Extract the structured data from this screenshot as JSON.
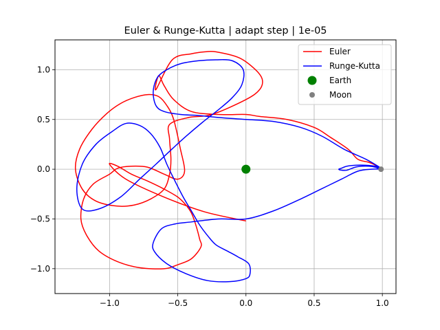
{
  "chart_data": {
    "type": "line",
    "title": "Euler & Runge-Kutta | adapt step | 1e-05",
    "xlabel": "",
    "ylabel": "",
    "xlim": [
      -1.4,
      1.1
    ],
    "ylim": [
      -1.25,
      1.3
    ],
    "grid": true,
    "legend_position": "top-right",
    "xticks": [
      -1.0,
      -0.5,
      0.0,
      0.5,
      1.0
    ],
    "xtick_labels": [
      "−1.0",
      "−0.5",
      "0.0",
      "0.5",
      "1.0"
    ],
    "yticks": [
      -1.0,
      -0.5,
      0.0,
      0.5,
      1.0
    ],
    "ytick_labels": [
      "−1.0",
      "−0.5",
      "0.0",
      "0.5",
      "1.0"
    ],
    "series": [
      {
        "name": "Euler",
        "kind": "line",
        "color": "#ff0000",
        "x": [
          0.99,
          0.95,
          0.9,
          0.82,
          0.75,
          0.62,
          0.5,
          0.3,
          0.1,
          0.0,
          -0.2,
          -0.4,
          -0.53,
          -0.6,
          -0.64,
          -0.66,
          -0.54,
          -0.4,
          -0.3,
          -0.22,
          -0.05,
          0.07,
          0.12,
          0.1,
          0.0,
          -0.25,
          -0.42,
          -0.56,
          -0.56,
          -0.55,
          -0.56,
          -0.6,
          -0.7,
          -0.82,
          -0.95,
          -1.1,
          -1.2,
          -1.25,
          -1.22,
          -1.13,
          -1.02,
          -0.92,
          -0.82,
          -0.72,
          -0.64,
          -0.58,
          -0.53,
          -0.48,
          -0.45,
          -0.5,
          -0.6,
          -0.72,
          -0.84,
          -0.94,
          -1.0,
          -1.12,
          -1.19,
          -1.21,
          -1.17,
          -1.08,
          -0.94,
          -0.78,
          -0.6,
          -0.5,
          -0.4,
          -0.33,
          -0.34,
          -0.37,
          -0.4,
          -0.44,
          -0.5,
          -0.6,
          -0.72,
          -0.84,
          -0.94,
          -1.0,
          -0.88,
          -0.6,
          -0.3,
          0.0
        ],
        "y": [
          0.0,
          0.04,
          0.07,
          0.1,
          0.2,
          0.32,
          0.42,
          0.5,
          0.53,
          0.55,
          0.55,
          0.58,
          0.7,
          0.84,
          0.94,
          0.8,
          1.1,
          1.16,
          1.18,
          1.18,
          1.12,
          1.0,
          0.9,
          0.8,
          0.7,
          0.55,
          0.52,
          0.45,
          0.3,
          0.1,
          -0.05,
          -0.2,
          -0.3,
          -0.36,
          -0.37,
          -0.32,
          -0.2,
          0.0,
          0.2,
          0.4,
          0.56,
          0.66,
          0.72,
          0.75,
          0.73,
          0.64,
          0.5,
          0.2,
          -0.02,
          -0.1,
          -0.05,
          0.02,
          0.03,
          0.01,
          -0.05,
          -0.15,
          -0.3,
          -0.5,
          -0.66,
          -0.82,
          -0.93,
          -0.99,
          -1.0,
          -0.96,
          -0.9,
          -0.78,
          -0.7,
          -0.55,
          -0.44,
          -0.36,
          -0.28,
          -0.2,
          -0.12,
          -0.05,
          0.03,
          0.05,
          -0.1,
          -0.28,
          -0.43,
          -0.52
        ]
      },
      {
        "name": "Runge-Kutta",
        "kind": "line",
        "color": "#0000ff",
        "x": [
          0.99,
          0.95,
          0.9,
          0.85,
          0.8,
          0.74,
          0.7,
          0.68,
          0.7,
          0.74,
          0.8,
          0.88,
          0.95,
          0.99,
          0.88,
          0.72,
          0.56,
          0.4,
          0.2,
          0.0,
          -0.2,
          -0.35,
          -0.48,
          -0.6,
          -0.66,
          -0.68,
          -0.65,
          -0.58,
          -0.48,
          -0.35,
          -0.22,
          -0.1,
          -0.02,
          -0.03,
          -0.1,
          -0.2,
          -0.32,
          -0.44,
          -0.56,
          -0.66,
          -0.78,
          -0.92,
          -1.08,
          -1.2,
          -1.24,
          -1.2,
          -1.1,
          -0.98,
          -0.88,
          -0.78,
          -0.7,
          -0.63,
          -0.58,
          -0.52,
          -0.46,
          -0.4,
          -0.34,
          -0.28,
          -0.22,
          -0.14,
          -0.06,
          0.02,
          0.03,
          0.0,
          -0.12,
          -0.28,
          -0.44,
          -0.58,
          -0.67,
          -0.68,
          -0.62,
          -0.52,
          -0.4,
          -0.2,
          0.0,
          0.2,
          0.4,
          0.55,
          0.7,
          0.82,
          0.92,
          0.99
        ],
        "y": [
          0.0,
          0.02,
          0.03,
          0.03,
          0.02,
          -0.01,
          -0.01,
          0.0,
          0.01,
          0.03,
          0.04,
          0.04,
          0.03,
          0.01,
          0.1,
          0.2,
          0.33,
          0.42,
          0.48,
          0.5,
          0.52,
          0.54,
          0.55,
          0.58,
          0.64,
          0.78,
          0.92,
          1.0,
          1.06,
          1.09,
          1.1,
          1.09,
          1.0,
          0.85,
          0.72,
          0.6,
          0.47,
          0.33,
          0.18,
          0.05,
          -0.1,
          -0.28,
          -0.4,
          -0.4,
          -0.2,
          0.05,
          0.25,
          0.38,
          0.46,
          0.44,
          0.36,
          0.22,
          0.05,
          -0.12,
          -0.28,
          -0.42,
          -0.56,
          -0.67,
          -0.76,
          -0.82,
          -0.88,
          -0.95,
          -1.05,
          -1.1,
          -1.13,
          -1.12,
          -1.05,
          -0.95,
          -0.83,
          -0.74,
          -0.6,
          -0.55,
          -0.53,
          -0.5,
          -0.5,
          -0.42,
          -0.3,
          -0.2,
          -0.1,
          -0.02,
          0.0,
          0.0
        ]
      },
      {
        "name": "Earth",
        "kind": "marker",
        "color": "#008000",
        "x": [
          0.0
        ],
        "y": [
          0.0
        ]
      },
      {
        "name": "Moon",
        "kind": "marker",
        "color": "#808080",
        "x": [
          0.99
        ],
        "y": [
          0.0
        ]
      }
    ]
  }
}
